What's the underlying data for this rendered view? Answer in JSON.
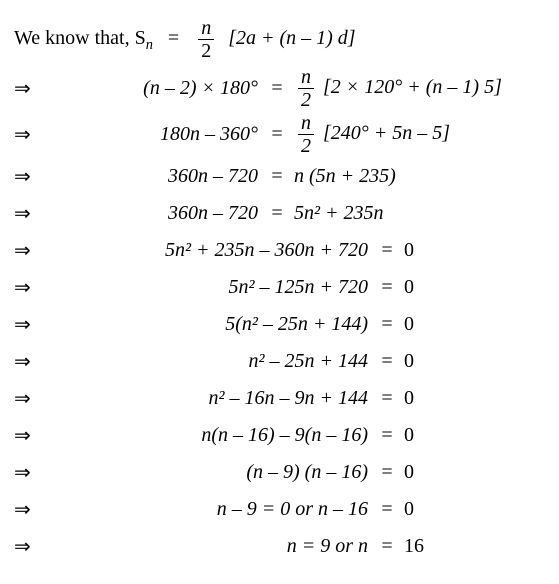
{
  "intro": {
    "prefix": "We know that,  S",
    "sub": "n",
    "frac_num": "n",
    "frac_den": "2",
    "bracket": "[2a + (n – 1) d]"
  },
  "groupA": [
    {
      "lhs": "(n – 2) × 180°",
      "rhs_frac_num": "n",
      "rhs_frac_den": "2",
      "rhs_tail": "[2 × 120° + (n – 1) 5]"
    },
    {
      "lhs": "180n – 360°",
      "rhs_frac_num": "n",
      "rhs_frac_den": "2",
      "rhs_tail": "[240° + 5n – 5]"
    },
    {
      "lhs": "360n – 720",
      "rhs_plain": "n (5n + 235)"
    },
    {
      "lhs": "360n – 720",
      "rhs_plain": "5n² + 235n"
    }
  ],
  "groupB": [
    {
      "lhs": "5n² + 235n – 360n + 720",
      "rhs": "0"
    },
    {
      "lhs": "5n² – 125n + 720",
      "rhs": "0"
    },
    {
      "lhs": "5(n² – 25n + 144)",
      "rhs": "0"
    },
    {
      "lhs": "n² – 25n + 144",
      "rhs": "0"
    },
    {
      "lhs": "n² – 16n – 9n + 144",
      "rhs": "0"
    },
    {
      "lhs": "n(n – 16) – 9(n – 16)",
      "rhs": "0"
    },
    {
      "lhs": "(n – 9) (n – 16)",
      "rhs": "0"
    },
    {
      "lhs": "n – 9 = 0   or   n – 16",
      "rhs": "0"
    },
    {
      "lhs": "n = 9   or   n",
      "rhs": "16"
    }
  ],
  "glyphs": {
    "arrow": "⇒",
    "eq": "="
  }
}
